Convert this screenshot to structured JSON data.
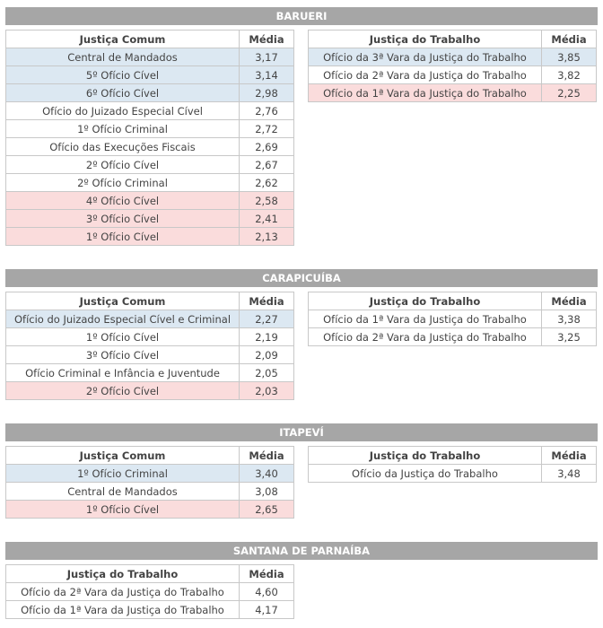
{
  "sections": [
    {
      "title": "BARUERI",
      "comum": {
        "headers": [
          "Justiça Comum",
          "Média"
        ],
        "rows": [
          {
            "name": "Central de Mandados",
            "value": "3,17",
            "hl": "blue"
          },
          {
            "name": "5º Ofício Cível",
            "value": "3,14",
            "hl": "blue"
          },
          {
            "name": "6º Ofício Cível",
            "value": "2,98",
            "hl": "blue"
          },
          {
            "name": "Ofício do Juizado Especial Cível",
            "value": "2,76",
            "hl": ""
          },
          {
            "name": "1º Ofício Criminal",
            "value": "2,72",
            "hl": ""
          },
          {
            "name": "Ofício das Execuções Fiscais",
            "value": "2,69",
            "hl": ""
          },
          {
            "name": "2º Ofício Cível",
            "value": "2,67",
            "hl": ""
          },
          {
            "name": "2º Ofício Criminal",
            "value": "2,62",
            "hl": ""
          },
          {
            "name": "4º Ofício Cível",
            "value": "2,58",
            "hl": "red"
          },
          {
            "name": "3º Ofício Cível",
            "value": "2,41",
            "hl": "red"
          },
          {
            "name": "1º Ofício Cível",
            "value": "2,13",
            "hl": "red"
          }
        ]
      },
      "trabalho": {
        "headers": [
          "Justiça do Trabalho",
          "Média"
        ],
        "rows": [
          {
            "name": "Ofício da 3ª Vara da Justiça do Trabalho",
            "value": "3,85",
            "hl": "blue"
          },
          {
            "name": "Ofício da 2ª Vara da Justiça do Trabalho",
            "value": "3,82",
            "hl": ""
          },
          {
            "name": "Ofício da 1ª Vara da Justiça do Trabalho",
            "value": "2,25",
            "hl": "red"
          }
        ]
      }
    },
    {
      "title": "CARAPICUÍBA",
      "comum": {
        "headers": [
          "Justiça Comum",
          "Média"
        ],
        "rows": [
          {
            "name": "Ofício do Juizado Especial Cível e Criminal",
            "value": "2,27",
            "hl": "blue"
          },
          {
            "name": "1º Ofício Cível",
            "value": "2,19",
            "hl": ""
          },
          {
            "name": "3º Ofício Cível",
            "value": "2,09",
            "hl": ""
          },
          {
            "name": "Ofício Criminal e Infância e Juventude",
            "value": "2,05",
            "hl": ""
          },
          {
            "name": "2º Ofício Cível",
            "value": "2,03",
            "hl": "red"
          }
        ]
      },
      "trabalho": {
        "headers": [
          "Justiça do Trabalho",
          "Média"
        ],
        "rows": [
          {
            "name": "Ofício da 1ª Vara da Justiça do Trabalho",
            "value": "3,38",
            "hl": ""
          },
          {
            "name": "Ofício da 2ª Vara da Justiça do Trabalho",
            "value": "3,25",
            "hl": ""
          }
        ]
      }
    },
    {
      "title": "ITAPEVÍ",
      "comum": {
        "headers": [
          "Justiça Comum",
          "Média"
        ],
        "rows": [
          {
            "name": "1º Ofício Criminal",
            "value": "3,40",
            "hl": "blue"
          },
          {
            "name": "Central de Mandados",
            "value": "3,08",
            "hl": ""
          },
          {
            "name": "1º Ofício Cível",
            "value": "2,65",
            "hl": "red"
          }
        ]
      },
      "trabalho": {
        "headers": [
          "Justiça do Trabalho",
          "Média"
        ],
        "rows": [
          {
            "name": "Ofício da Justiça do Trabalho",
            "value": "3,48",
            "hl": ""
          }
        ]
      }
    },
    {
      "title": "SANTANA DE PARNAÍBA",
      "comum": {
        "headers": [
          "Justiça do Trabalho",
          "Média"
        ],
        "rows": [
          {
            "name": "Ofício da 2ª Vara da Justiça do Trabalho",
            "value": "4,60",
            "hl": ""
          },
          {
            "name": "Ofício da 1ª Vara da Justiça do Trabalho",
            "value": "4,17",
            "hl": ""
          }
        ]
      }
    }
  ],
  "colors": {
    "header_bar": "#a6a6a6",
    "highlight_top": "#dce8f2",
    "highlight_bottom": "#fadcdc",
    "border": "#c8c8c8"
  }
}
